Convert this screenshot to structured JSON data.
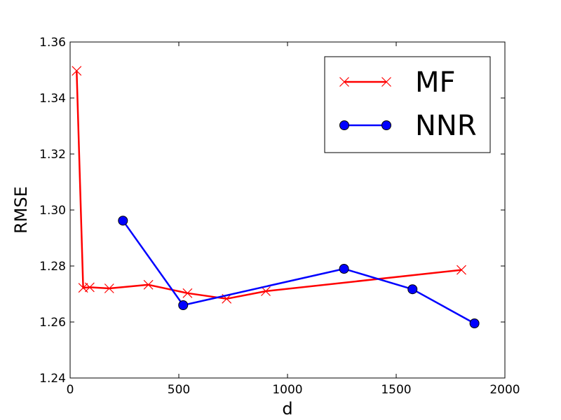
{
  "chart_data": {
    "type": "line",
    "xlabel": "d",
    "ylabel": "RMSE",
    "xlim": [
      0,
      2000
    ],
    "ylim": [
      1.24,
      1.36
    ],
    "xticks": [
      0,
      500,
      1000,
      1500,
      2000
    ],
    "yticks": [
      1.24,
      1.26,
      1.28,
      1.3,
      1.32,
      1.34,
      1.36
    ],
    "xtick_labels": [
      "0",
      "500",
      "1000",
      "1500",
      "2000"
    ],
    "ytick_labels": [
      "1.24",
      "1.26",
      "1.28",
      "1.30",
      "1.32",
      "1.34",
      "1.36"
    ],
    "grid": false,
    "legend_position": "top-right",
    "series": [
      {
        "name": "MF",
        "color": "#ff0000",
        "marker": "x",
        "x": [
          30,
          60,
          90,
          180,
          360,
          540,
          720,
          900,
          1800
        ],
        "y": [
          1.3497,
          1.2722,
          1.2724,
          1.272,
          1.2733,
          1.2703,
          1.2683,
          1.271,
          1.2786
        ]
      },
      {
        "name": "NNR",
        "color": "#0000ff",
        "marker": "circle",
        "x": [
          243,
          520,
          1260,
          1575,
          1860
        ],
        "y": [
          1.2962,
          1.266,
          1.279,
          1.2717,
          1.2595
        ]
      }
    ]
  }
}
